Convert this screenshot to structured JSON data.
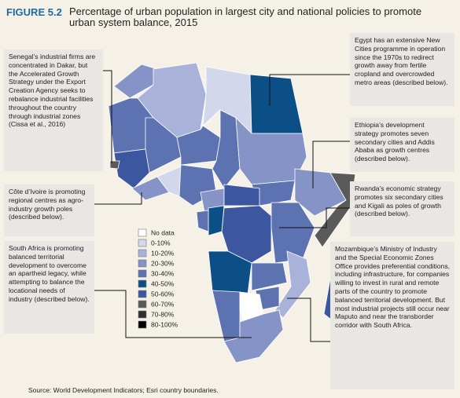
{
  "figure_label": "FIGURE 5.2",
  "title": "Percentage of urban population in largest city and national policies to promote urban system balance, 2015",
  "legend": [
    {
      "label": "No data",
      "color": "#ffffff"
    },
    {
      "label": "0-10%",
      "color": "#d2d7ec"
    },
    {
      "label": "10-20%",
      "color": "#a9b3da"
    },
    {
      "label": "20-30%",
      "color": "#8593c6"
    },
    {
      "label": "30-40%",
      "color": "#5d72b1"
    },
    {
      "label": "40-50%",
      "color": "#0c4f86"
    },
    {
      "label": "50-60%",
      "color": "#3c56a0"
    },
    {
      "label": "60-70%",
      "color": "#5a5a5a"
    },
    {
      "label": "70-80%",
      "color": "#2e2e2e"
    },
    {
      "label": "80-100%",
      "color": "#000000"
    }
  ],
  "annotations": {
    "senegal": "Senegal’s industrial firms are concentrated in Dakar, but the Accelerated Growth Strategy under the Export Creation Agency seeks to rebalance industrial facilities throughout the country through industrial zones (Cissa et al., 2016)",
    "cote_divoire": "Côte d’Ivoire is promoting regional centres as agro-industry growth poles (described below).",
    "south_africa": "South Africa is promoting balanced territorial development to overcome an apartheid legacy, while attempting to balance the locational needs of industry (described below).",
    "egypt": "Egypt has an extensive New Cities programme in operation since the 1970s to redirect growth away from fertile cropland and overcrowded metro areas (described below).",
    "ethiopia": "Ethiopia’s development strategy promotes seven secondary cities and Addis Ababa as growth centres (described below).",
    "rwanda": "Rwanda’s economic strategy promotes six secondary cities and Kigali as poles of growth (described below).",
    "mozambique": "Mozambique’s Ministry of Industry and the Special Economic Zones Office provides preferential conditions, including infrastructure, for companies willing to invest in rural and remote parts of the country to promote balanced territorial development.  But most industrial projects still occur near Maputo and near the transborder corridor with South Africa."
  },
  "source": "Source: World Development Indicators; Esri country boundaries."
}
